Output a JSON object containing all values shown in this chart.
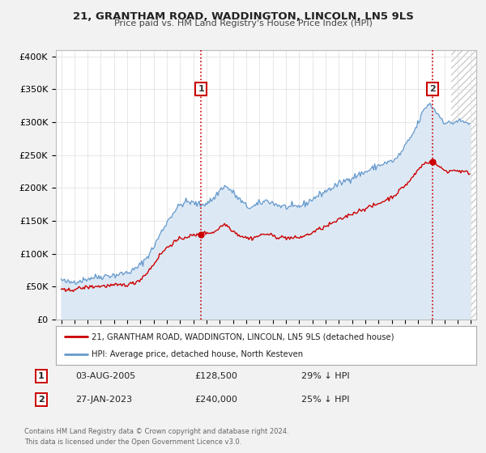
{
  "title": "21, GRANTHAM ROAD, WADDINGTON, LINCOLN, LN5 9LS",
  "subtitle": "Price paid vs. HM Land Registry's House Price Index (HPI)",
  "background_color": "#f2f2f2",
  "plot_bg_color": "#ffffff",
  "hpi_line_color": "#6699cc",
  "hpi_fill_color": "#dce9f5",
  "price_color": "#cc0000",
  "marker_color": "#cc0000",
  "annotation_box_color": "#cc0000",
  "vline_color": "#cc0000",
  "hatch_color": "#cccccc",
  "ylim": [
    0,
    410000
  ],
  "yticks": [
    0,
    50000,
    100000,
    150000,
    200000,
    250000,
    300000,
    350000,
    400000
  ],
  "ytick_labels": [
    "£0",
    "£50K",
    "£100K",
    "£150K",
    "£200K",
    "£250K",
    "£300K",
    "£350K",
    "£400K"
  ],
  "legend_label_red": "21, GRANTHAM ROAD, WADDINGTON, LINCOLN, LN5 9LS (detached house)",
  "legend_label_blue": "HPI: Average price, detached house, North Kesteven",
  "annotation1_date": "03-AUG-2005",
  "annotation1_price": "£128,500",
  "annotation1_hpi": "29% ↓ HPI",
  "annotation1_year": 2005.58,
  "annotation1_value": 128500,
  "annotation2_date": "27-JAN-2023",
  "annotation2_price": "£240,000",
  "annotation2_hpi": "25% ↓ HPI",
  "annotation2_year": 2023.07,
  "annotation2_value": 240000,
  "hatch_start": 2024.5,
  "xmin": 1994.6,
  "xmax": 2026.4,
  "footer_line1": "Contains HM Land Registry data © Crown copyright and database right 2024.",
  "footer_line2": "This data is licensed under the Open Government Licence v3.0."
}
